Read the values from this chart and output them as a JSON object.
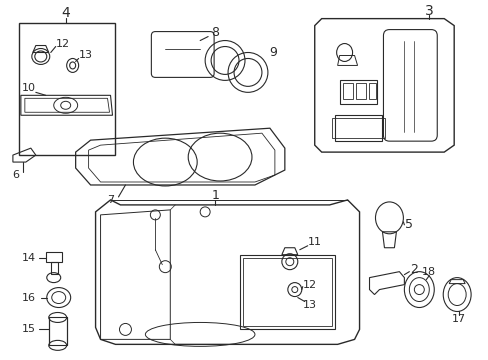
{
  "bg_color": "#ffffff",
  "line_color": "#2a2a2a",
  "lw": 0.8,
  "figsize": [
    4.89,
    3.6
  ],
  "dpi": 100
}
